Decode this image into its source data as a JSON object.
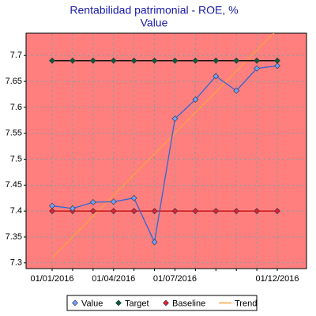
{
  "chart_data": {
    "type": "line",
    "title": "Rentabilidad patrimonial - ROE, %",
    "subtitle": "Value",
    "categories": [
      "01/01/2016",
      null,
      null,
      "01/04/2016",
      null,
      null,
      "01/07/2016",
      null,
      null,
      null,
      null,
      "01/12/2016"
    ],
    "series": [
      {
        "name": "Value",
        "color": "#2f66d6",
        "marker_color": "#6fa0ff",
        "marker": true,
        "values": [
          7.41,
          7.405,
          7.417,
          7.418,
          7.425,
          7.34,
          7.578,
          7.615,
          7.66,
          7.632,
          7.675,
          7.68
        ]
      },
      {
        "name": "Target",
        "color": "#000000",
        "marker_color": "#0b5a3a",
        "marker": true,
        "values": [
          7.69,
          7.69,
          7.69,
          7.69,
          7.69,
          7.69,
          7.69,
          7.69,
          7.69,
          7.69,
          7.69,
          7.69
        ]
      },
      {
        "name": "Baseline",
        "color": "#c00000",
        "marker_color": "#e0203a",
        "marker": true,
        "values": [
          7.4,
          7.4,
          7.4,
          7.4,
          7.4,
          7.4,
          7.4,
          7.4,
          7.4,
          7.4,
          7.4,
          7.4
        ]
      },
      {
        "name": "Trend",
        "color": "#ffa040",
        "marker": false,
        "values": [
          7.31,
          7.35,
          7.39,
          7.43,
          7.47,
          7.51,
          7.55,
          7.59,
          7.63,
          7.67,
          7.71,
          7.75
        ]
      }
    ],
    "ylim": [
      7.289,
      7.743
    ],
    "yticks": [
      7.3,
      7.35,
      7.4,
      7.45,
      7.5,
      7.55,
      7.6,
      7.65,
      7.7
    ],
    "grid": true,
    "plot_background": "#ff7f7f",
    "legend": "bottom"
  }
}
